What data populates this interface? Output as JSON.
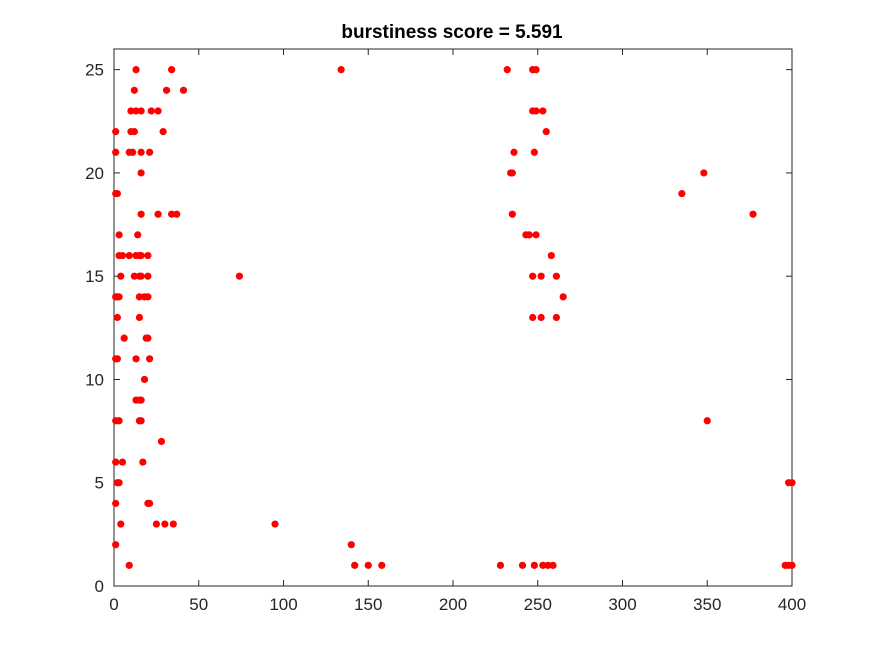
{
  "chart_data": {
    "type": "scatter",
    "title": "burstiness score = 5.591",
    "xlabel": "",
    "ylabel": "",
    "xlim": [
      0,
      400
    ],
    "ylim": [
      0,
      26
    ],
    "xticks": [
      0,
      50,
      100,
      150,
      200,
      250,
      300,
      350,
      400
    ],
    "yticks": [
      0,
      5,
      10,
      15,
      20,
      25
    ],
    "grid": false,
    "legend": "none",
    "marker_color": "#ff0000",
    "points": [
      [
        9,
        1
      ],
      [
        142,
        1
      ],
      [
        150,
        1
      ],
      [
        158,
        1
      ],
      [
        228,
        1
      ],
      [
        241,
        1
      ],
      [
        248,
        1
      ],
      [
        253,
        1
      ],
      [
        256,
        1
      ],
      [
        259,
        1
      ],
      [
        396,
        1
      ],
      [
        398,
        1
      ],
      [
        400,
        1
      ],
      [
        1,
        2
      ],
      [
        140,
        2
      ],
      [
        4,
        3
      ],
      [
        25,
        3
      ],
      [
        30,
        3
      ],
      [
        35,
        3
      ],
      [
        95,
        3
      ],
      [
        1,
        4
      ],
      [
        20,
        4
      ],
      [
        21,
        4
      ],
      [
        2,
        5
      ],
      [
        3,
        5
      ],
      [
        398,
        5
      ],
      [
        400,
        5
      ],
      [
        1,
        6
      ],
      [
        5,
        6
      ],
      [
        17,
        6
      ],
      [
        28,
        7
      ],
      [
        1,
        8
      ],
      [
        3,
        8
      ],
      [
        15,
        8
      ],
      [
        16,
        8
      ],
      [
        350,
        8
      ],
      [
        13,
        9
      ],
      [
        15,
        9
      ],
      [
        16,
        9
      ],
      [
        18,
        10
      ],
      [
        1,
        11
      ],
      [
        2,
        11
      ],
      [
        13,
        11
      ],
      [
        21,
        11
      ],
      [
        6,
        12
      ],
      [
        19,
        12
      ],
      [
        20,
        12
      ],
      [
        2,
        13
      ],
      [
        15,
        13
      ],
      [
        247,
        13
      ],
      [
        252,
        13
      ],
      [
        261,
        13
      ],
      [
        1,
        14
      ],
      [
        2,
        14
      ],
      [
        3,
        14
      ],
      [
        15,
        14
      ],
      [
        18,
        14
      ],
      [
        20,
        14
      ],
      [
        265,
        14
      ],
      [
        4,
        15
      ],
      [
        12,
        15
      ],
      [
        15,
        15
      ],
      [
        16,
        15
      ],
      [
        20,
        15
      ],
      [
        74,
        15
      ],
      [
        247,
        15
      ],
      [
        252,
        15
      ],
      [
        261,
        15
      ],
      [
        3,
        16
      ],
      [
        5,
        16
      ],
      [
        9,
        16
      ],
      [
        13,
        16
      ],
      [
        15,
        16
      ],
      [
        16,
        16
      ],
      [
        20,
        16
      ],
      [
        258,
        16
      ],
      [
        3,
        17
      ],
      [
        14,
        17
      ],
      [
        243,
        17
      ],
      [
        245,
        17
      ],
      [
        249,
        17
      ],
      [
        16,
        18
      ],
      [
        26,
        18
      ],
      [
        34,
        18
      ],
      [
        37,
        18
      ],
      [
        235,
        18
      ],
      [
        377,
        18
      ],
      [
        1,
        19
      ],
      [
        2,
        19
      ],
      [
        335,
        19
      ],
      [
        16,
        20
      ],
      [
        234,
        20
      ],
      [
        235,
        20
      ],
      [
        348,
        20
      ],
      [
        1,
        21
      ],
      [
        9,
        21
      ],
      [
        11,
        21
      ],
      [
        16,
        21
      ],
      [
        21,
        21
      ],
      [
        236,
        21
      ],
      [
        248,
        21
      ],
      [
        1,
        22
      ],
      [
        10,
        22
      ],
      [
        12,
        22
      ],
      [
        29,
        22
      ],
      [
        255,
        22
      ],
      [
        10,
        23
      ],
      [
        13,
        23
      ],
      [
        16,
        23
      ],
      [
        22,
        23
      ],
      [
        26,
        23
      ],
      [
        247,
        23
      ],
      [
        249,
        23
      ],
      [
        253,
        23
      ],
      [
        12,
        24
      ],
      [
        31,
        24
      ],
      [
        41,
        24
      ],
      [
        13,
        25
      ],
      [
        34,
        25
      ],
      [
        134,
        25
      ],
      [
        232,
        25
      ],
      [
        247,
        25
      ],
      [
        249,
        25
      ]
    ]
  }
}
